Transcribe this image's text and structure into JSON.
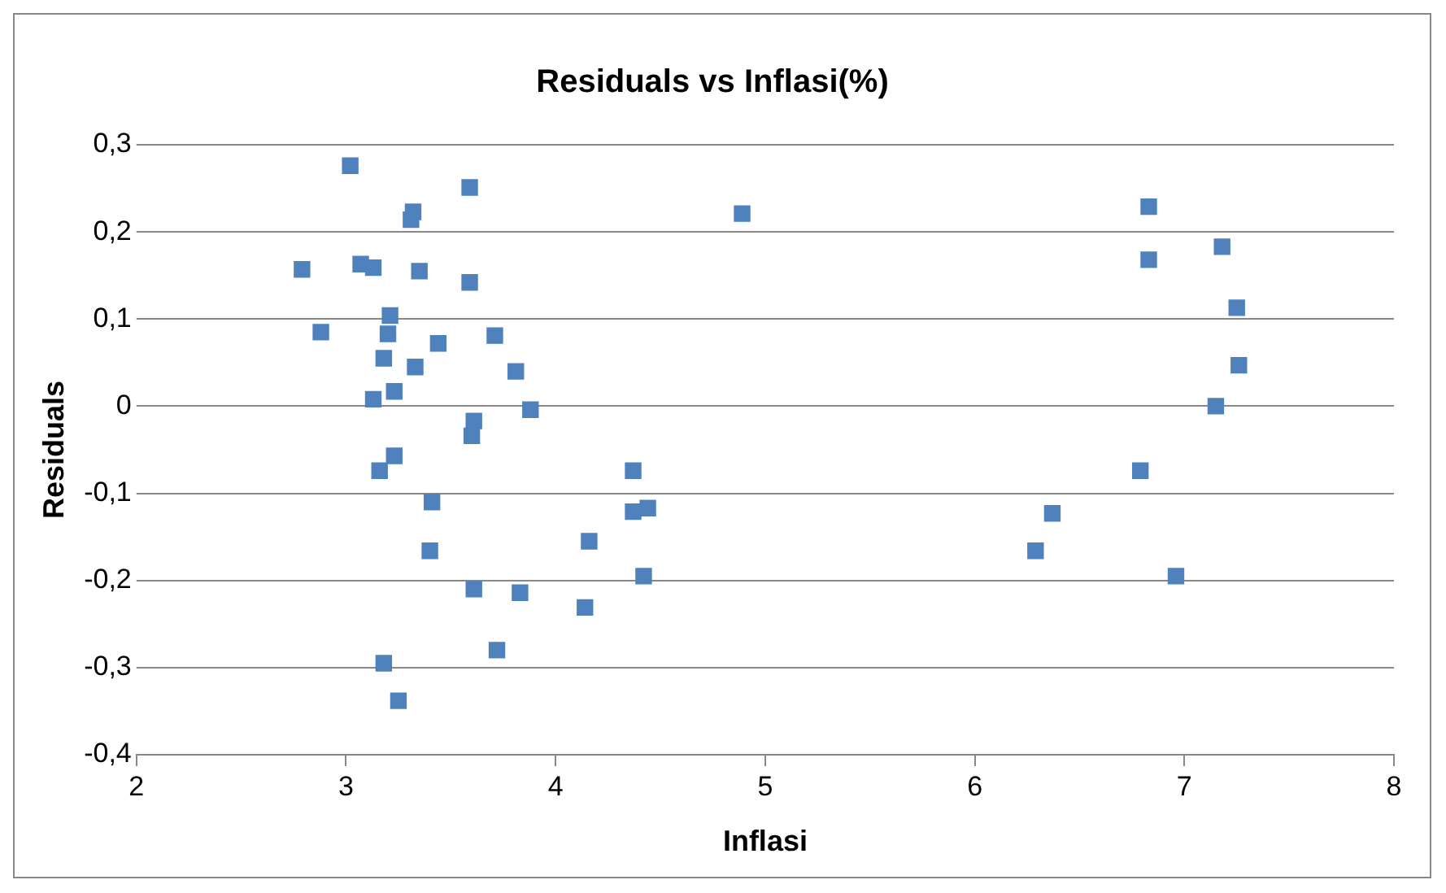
{
  "chart_data": {
    "type": "scatter",
    "title": "Residuals vs Inflasi(%)",
    "xlabel": "Inflasi",
    "ylabel": "Residuals",
    "x": [
      3.02,
      2.79,
      2.88,
      3.07,
      3.13,
      3.32,
      3.31,
      3.59,
      3.35,
      3.59,
      3.21,
      3.2,
      3.18,
      3.44,
      3.33,
      3.71,
      3.81,
      3.13,
      3.23,
      3.61,
      3.6,
      3.88,
      3.23,
      3.16,
      3.41,
      3.4,
      3.61,
      3.83,
      3.18,
      3.25,
      3.72,
      4.14,
      4.16,
      4.37,
      4.44,
      4.37,
      4.42,
      4.89,
      6.29,
      6.37,
      6.79,
      6.83,
      6.83,
      6.96,
      7.15,
      7.18,
      7.25,
      7.26
    ],
    "values": [
      0.276,
      0.157,
      0.085,
      0.163,
      0.159,
      0.223,
      0.214,
      0.251,
      0.155,
      0.142,
      0.104,
      0.083,
      0.055,
      0.072,
      0.045,
      0.081,
      0.04,
      0.008,
      0.017,
      -0.017,
      -0.034,
      -0.004,
      -0.057,
      -0.074,
      -0.11,
      -0.166,
      -0.21,
      -0.214,
      -0.295,
      -0.338,
      -0.28,
      -0.231,
      -0.155,
      -0.121,
      -0.117,
      -0.074,
      -0.195,
      0.221,
      -0.166,
      -0.123,
      -0.074,
      0.229,
      0.168,
      -0.195,
      0,
      0.183,
      0.113,
      0.047
    ],
    "color": "#4f81bd",
    "marker": "square",
    "grid": "y",
    "xlim": [
      2,
      8
    ],
    "xticks": [
      2,
      3,
      4,
      5,
      6,
      7,
      8
    ],
    "ylim": [
      -0.4,
      0.3
    ],
    "yticks": [
      {
        "value": -0.4,
        "label": "-0,4"
      },
      {
        "value": -0.3,
        "label": "-0,3"
      },
      {
        "value": -0.2,
        "label": "-0,2"
      },
      {
        "value": -0.1,
        "label": "-0,1"
      },
      {
        "value": 0,
        "label": "0"
      },
      {
        "value": 0.1,
        "label": "0,1"
      },
      {
        "value": 0.2,
        "label": "0,2"
      },
      {
        "value": 0.3,
        "label": "0,3"
      }
    ]
  }
}
